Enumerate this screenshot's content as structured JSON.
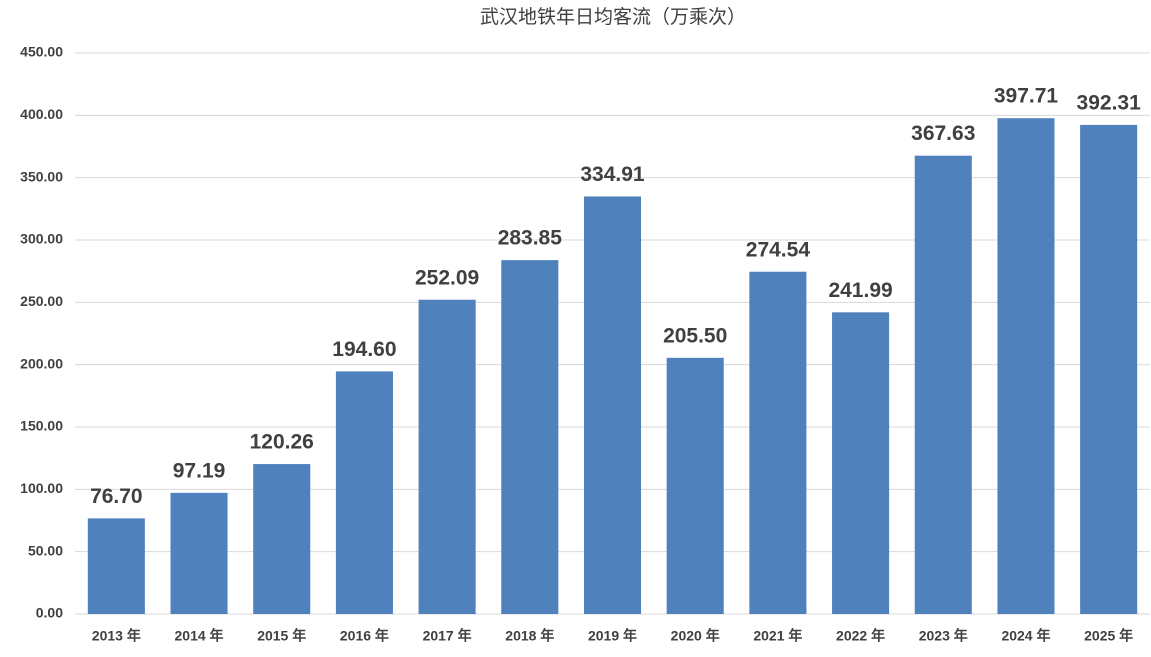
{
  "chart_data": {
    "type": "bar",
    "title": "武汉地铁年日均客流（万乘次）",
    "categories": [
      "2013 年",
      "2014 年",
      "2015 年",
      "2016 年",
      "2017 年",
      "2018 年",
      "2019 年",
      "2020 年",
      "2021 年",
      "2022 年",
      "2023 年",
      "2024 年",
      "2025 年"
    ],
    "values": [
      76.7,
      97.19,
      120.26,
      194.6,
      252.09,
      283.85,
      334.91,
      205.5,
      274.54,
      241.99,
      367.63,
      397.71,
      392.31
    ],
    "value_labels": [
      "76.70",
      "97.19",
      "120.26",
      "194.60",
      "252.09",
      "283.85",
      "334.91",
      "205.50",
      "274.54",
      "241.99",
      "367.63",
      "397.71",
      "392.31"
    ],
    "color": "#4f81bd",
    "ylim": [
      0,
      450
    ],
    "yticks": [
      {
        "value": 0,
        "label": "0.00"
      },
      {
        "value": 50,
        "label": "50.00"
      },
      {
        "value": 100,
        "label": "100.00"
      },
      {
        "value": 150,
        "label": "150.00"
      },
      {
        "value": 200,
        "label": "200.00"
      },
      {
        "value": 250,
        "label": "250.00"
      },
      {
        "value": 300,
        "label": "300.00"
      },
      {
        "value": 350,
        "label": "350.00"
      },
      {
        "value": 400,
        "label": "400.00"
      },
      {
        "value": 450,
        "label": "450.00"
      }
    ],
    "grid": true
  }
}
